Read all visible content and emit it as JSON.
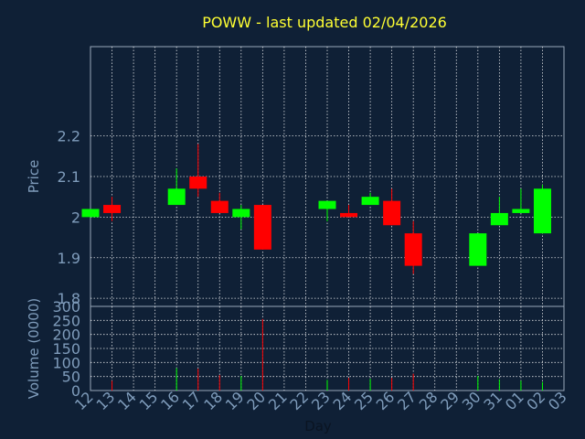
{
  "chart_data": {
    "type": "candlestick",
    "title": "POWW - last updated 02/04/2026",
    "xlabel": "Day",
    "ylabel": "Price",
    "volume_label": "Volume (0000)",
    "x_ticks": [
      "12",
      "13",
      "14",
      "15",
      "16",
      "17",
      "18",
      "19",
      "20",
      "21",
      "22",
      "23",
      "24",
      "25",
      "26",
      "27",
      "28",
      "29",
      "30",
      "31",
      "01",
      "02",
      "03"
    ],
    "price_ticks": [
      "1.8",
      "1.9",
      "2",
      "2.1",
      "2.2"
    ],
    "volume_ticks": [
      "0",
      "50",
      "100",
      "150",
      "200",
      "250",
      "300"
    ],
    "price_range": [
      1.78,
      2.42
    ],
    "volume_range": [
      0,
      300
    ],
    "grid": true,
    "colors": {
      "up": "#00ff00",
      "down": "#ff0000",
      "background": "#0f2036",
      "grid": "#ffffff",
      "title": "#ffff33",
      "text": "#7f9cbb"
    },
    "candles": [
      {
        "day": "12",
        "open": 2.0,
        "close": 2.02,
        "high": 2.02,
        "low": 2.0,
        "volume": 0
      },
      {
        "day": "13",
        "open": 2.03,
        "close": 2.01,
        "high": 2.05,
        "low": 1.99,
        "volume": 35
      },
      {
        "day": "16",
        "open": 2.03,
        "close": 2.07,
        "high": 2.12,
        "low": 2.03,
        "volume": 80
      },
      {
        "day": "17",
        "open": 2.1,
        "close": 2.07,
        "high": 2.18,
        "low": 2.05,
        "volume": 78
      },
      {
        "day": "18",
        "open": 2.04,
        "close": 2.01,
        "high": 2.06,
        "low": 2.01,
        "volume": 55
      },
      {
        "day": "19",
        "open": 2.0,
        "close": 2.02,
        "high": 2.03,
        "low": 1.97,
        "volume": 52
      },
      {
        "day": "20",
        "open": 2.03,
        "close": 1.92,
        "high": 2.03,
        "low": 1.92,
        "volume": 255
      },
      {
        "day": "23",
        "open": 2.02,
        "close": 2.04,
        "high": 2.04,
        "low": 1.99,
        "volume": 38
      },
      {
        "day": "24",
        "open": 2.01,
        "close": 2.0,
        "high": 2.03,
        "low": 2.0,
        "volume": 45
      },
      {
        "day": "25",
        "open": 2.03,
        "close": 2.05,
        "high": 2.06,
        "low": 2.03,
        "volume": 42
      },
      {
        "day": "26",
        "open": 2.04,
        "close": 1.98,
        "high": 2.07,
        "low": 1.98,
        "volume": 45
      },
      {
        "day": "27",
        "open": 1.96,
        "close": 1.88,
        "high": 1.99,
        "low": 1.86,
        "volume": 60
      },
      {
        "day": "30",
        "open": 1.88,
        "close": 1.96,
        "high": 1.96,
        "low": 1.88,
        "volume": 52
      },
      {
        "day": "31",
        "open": 1.98,
        "close": 2.01,
        "high": 2.05,
        "low": 1.98,
        "volume": 40
      },
      {
        "day": "01",
        "open": 2.01,
        "close": 2.02,
        "high": 2.07,
        "low": 2.01,
        "volume": 35
      },
      {
        "day": "02",
        "open": 1.96,
        "close": 2.07,
        "high": 2.08,
        "low": 1.96,
        "volume": 30
      }
    ]
  }
}
